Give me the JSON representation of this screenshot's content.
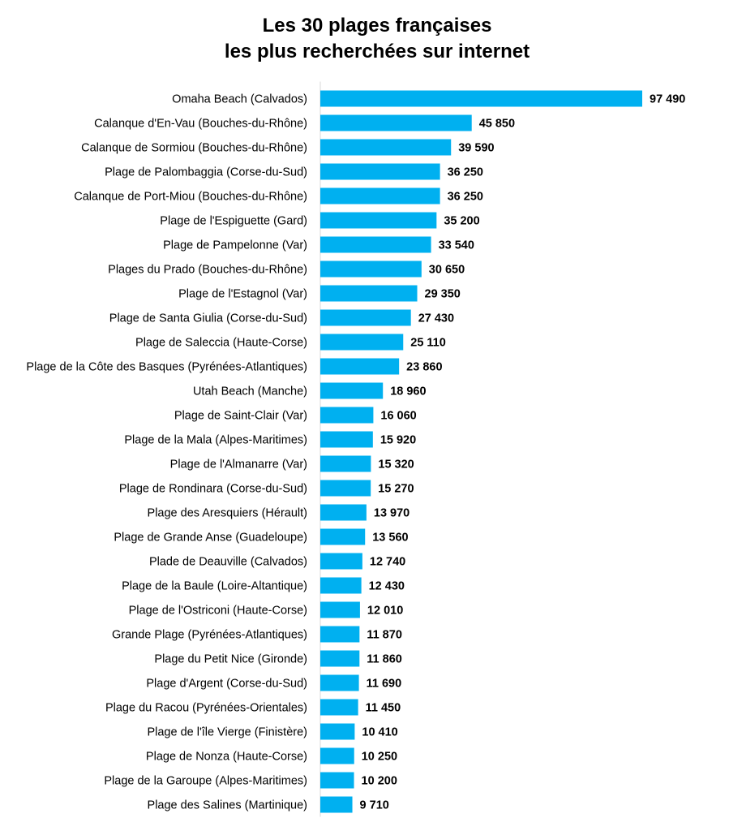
{
  "chart_data": {
    "type": "bar",
    "orientation": "horizontal",
    "title_lines": [
      "Les 30 plages françaises",
      "les plus recherchées sur internet"
    ],
    "categories": [
      "Omaha Beach (Calvados)",
      "Calanque d'En-Vau (Bouches-du-Rhône)",
      "Calanque de Sormiou (Bouches-du-Rhône)",
      "Plage de Palombaggia (Corse-du-Sud)",
      "Calanque de Port-Miou (Bouches-du-Rhône)",
      "Plage de l'Espiguette (Gard)",
      "Plage de Pampelonne (Var)",
      "Plages du Prado (Bouches-du-Rhône)",
      "Plage de l'Estagnol (Var)",
      "Plage de Santa Giulia (Corse-du-Sud)",
      "Plage de Saleccia (Haute-Corse)",
      "Plage de la Côte des Basques (Pyrénées-Atlantiques)",
      "Utah Beach (Manche)",
      "Plage de Saint-Clair (Var)",
      "Plage de la Mala (Alpes-Maritimes)",
      "Plage de l'Almanarre (Var)",
      "Plage de Rondinara (Corse-du-Sud)",
      "Plage des Aresquiers (Hérault)",
      "Plage de Grande Anse (Guadeloupe)",
      "Plade de Deauville (Calvados)",
      "Plage de la Baule (Loire-Altantique)",
      "Plage de l'Ostriconi (Haute-Corse)",
      "Grande Plage (Pyrénées-Atlantiques)",
      "Plage du Petit Nice (Gironde)",
      "Plage d'Argent (Corse-du-Sud)",
      "Plage du Racou (Pyrénées-Orientales)",
      "Plage de l'île Vierge (Finistère)",
      "Plage de Nonza (Haute-Corse)",
      "Plage de la Garoupe (Alpes-Maritimes)",
      "Plage des Salines (Martinique)"
    ],
    "values": [
      97490,
      45850,
      39590,
      36250,
      36250,
      35200,
      33540,
      30650,
      29350,
      27430,
      25110,
      23860,
      18960,
      16060,
      15920,
      15320,
      15270,
      13970,
      13560,
      12740,
      12430,
      12010,
      11870,
      11860,
      11690,
      11450,
      10410,
      10250,
      10200,
      9710
    ],
    "value_labels": [
      "97 490",
      "45 850",
      "39 590",
      "36 250",
      "36 250",
      "35 200",
      "33 540",
      "30 650",
      "29 350",
      "27 430",
      "25 110",
      "23 860",
      "18 960",
      "16 060",
      "15 920",
      "15 320",
      "15 270",
      "13 970",
      "13 560",
      "12 740",
      "12 430",
      "12 010",
      "11 870",
      "11 860",
      "11 690",
      "11 450",
      "10 410",
      "10 250",
      "10 200",
      "9 710"
    ],
    "xlim": [
      0,
      97490
    ],
    "grid": false,
    "legend": "none",
    "colors": {
      "bar": "#00B0F0",
      "axis": "#D9D9D9",
      "text": "#000000"
    }
  }
}
